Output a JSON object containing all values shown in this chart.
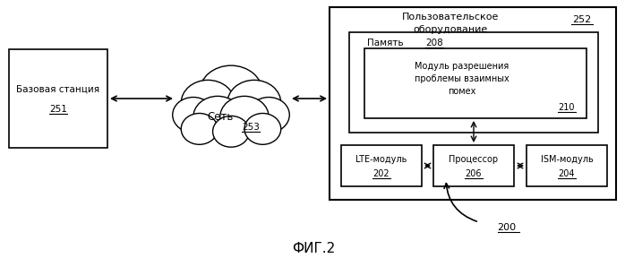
{
  "title": "ФИГ.2",
  "bg_color": "#ffffff",
  "base_station_label": "Базовая станция",
  "base_station_num": "251",
  "network_label": "Сеть",
  "network_num": "253",
  "ue_label": "Пользовательское\nоборудование",
  "ue_num": "252",
  "memory_label": "Память",
  "memory_num": "208",
  "module_label": "Модуль разрешения\nпроблемы взаимных\nпомех",
  "module_num": "210",
  "lte_label": "LTE-модуль",
  "lte_num": "202",
  "processor_label": "Процессор",
  "processor_num": "206",
  "ism_label": "ISM-модуль",
  "ism_num": "204",
  "ref_num": "200"
}
